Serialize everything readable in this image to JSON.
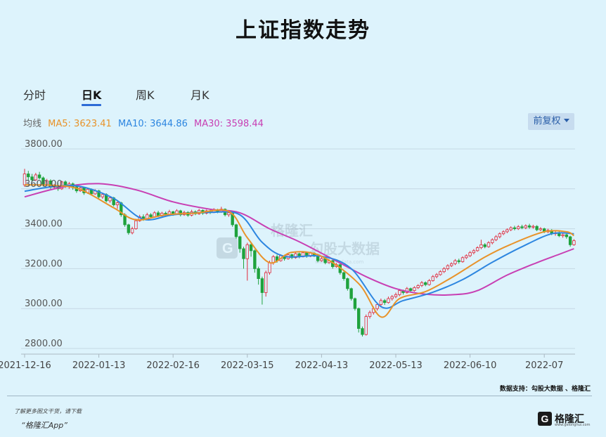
{
  "title": "上证指数走势",
  "tabs": [
    {
      "label": "分时",
      "active": false
    },
    {
      "label": "日K",
      "active": true
    },
    {
      "label": "周K",
      "active": false
    },
    {
      "label": "月K",
      "active": false
    }
  ],
  "ma": {
    "label": "均线",
    "ma5": "MA5: 3623.41",
    "ma10": "MA10: 3644.86",
    "ma30": "MA30: 3598.44",
    "ma5_color": "#e8932a",
    "ma10_color": "#2d86e0",
    "ma30_color": "#c83fb3"
  },
  "adjust_button": "前复权",
  "watermark": {
    "brand": "格隆汇",
    "partner": "勾股大数据",
    "url": "www.gogudata.com"
  },
  "source": "数据支持：勾股大数据 、格隆汇",
  "promo": {
    "line1": "了解更多图文干货，请下载",
    "line2": "“格隆汇App”"
  },
  "logo": {
    "mark": "G",
    "name": "格隆汇",
    "url": "www.gelonghui.com"
  },
  "colors": {
    "up": "#e0273a",
    "down": "#1fa23d",
    "background": "#ddf3fc"
  },
  "chart_data": {
    "type": "candlestick",
    "ylim": [
      2800,
      3800
    ],
    "y_ticks": [
      "3800.00",
      "3600.00",
      "3400.00",
      "3200.00",
      "3000.00",
      "2800.00"
    ],
    "x_ticks": [
      "2021-12-16",
      "2022-01-13",
      "2022-02-16",
      "2022-03-15",
      "2022-04-13",
      "2022-05-13",
      "2022-06-10",
      "2022-07"
    ],
    "x_tick_index": [
      0,
      20,
      40,
      60,
      80,
      100,
      120,
      140
    ],
    "ma5_anchors": [
      [
        0,
        3620
      ],
      [
        8,
        3617
      ],
      [
        15,
        3597
      ],
      [
        24,
        3505
      ],
      [
        30,
        3445
      ],
      [
        38,
        3470
      ],
      [
        46,
        3478
      ],
      [
        55,
        3487
      ],
      [
        60,
        3355
      ],
      [
        66,
        3230
      ],
      [
        72,
        3282
      ],
      [
        80,
        3262
      ],
      [
        90,
        3125
      ],
      [
        96,
        2958
      ],
      [
        101,
        3050
      ],
      [
        108,
        3085
      ],
      [
        115,
        3155
      ],
      [
        124,
        3258
      ],
      [
        131,
        3322
      ],
      [
        140,
        3385
      ],
      [
        146,
        3385
      ],
      [
        148,
        3365
      ]
    ],
    "ma10_anchors": [
      [
        0,
        3588
      ],
      [
        8,
        3612
      ],
      [
        15,
        3612
      ],
      [
        24,
        3552
      ],
      [
        32,
        3448
      ],
      [
        40,
        3470
      ],
      [
        50,
        3482
      ],
      [
        58,
        3470
      ],
      [
        64,
        3332
      ],
      [
        70,
        3262
      ],
      [
        80,
        3262
      ],
      [
        88,
        3200
      ],
      [
        96,
        3010
      ],
      [
        102,
        3040
      ],
      [
        110,
        3082
      ],
      [
        118,
        3145
      ],
      [
        126,
        3232
      ],
      [
        134,
        3310
      ],
      [
        142,
        3375
      ],
      [
        148,
        3375
      ]
    ],
    "ma30_anchors": [
      [
        0,
        3560
      ],
      [
        10,
        3608
      ],
      [
        20,
        3626
      ],
      [
        30,
        3595
      ],
      [
        40,
        3535
      ],
      [
        50,
        3498
      ],
      [
        58,
        3480
      ],
      [
        66,
        3400
      ],
      [
        74,
        3335
      ],
      [
        84,
        3238
      ],
      [
        92,
        3160
      ],
      [
        100,
        3100
      ],
      [
        108,
        3072
      ],
      [
        116,
        3070
      ],
      [
        122,
        3090
      ],
      [
        130,
        3168
      ],
      [
        138,
        3230
      ],
      [
        144,
        3272
      ],
      [
        148,
        3300
      ]
    ],
    "candles": [
      [
        0,
        3620,
        3675,
        3700,
        3610
      ],
      [
        1,
        3675,
        3660,
        3690,
        3640
      ],
      [
        2,
        3660,
        3645,
        3675,
        3635
      ],
      [
        3,
        3645,
        3670,
        3680,
        3640
      ],
      [
        4,
        3670,
        3655,
        3685,
        3648
      ],
      [
        5,
        3655,
        3620,
        3662,
        3612
      ],
      [
        6,
        3620,
        3640,
        3650,
        3615
      ],
      [
        7,
        3640,
        3608,
        3648,
        3600
      ],
      [
        8,
        3608,
        3615,
        3625,
        3598
      ],
      [
        9,
        3615,
        3600,
        3630,
        3590
      ],
      [
        10,
        3600,
        3635,
        3640,
        3595
      ],
      [
        11,
        3635,
        3612,
        3642,
        3605
      ],
      [
        12,
        3612,
        3625,
        3635,
        3600
      ],
      [
        13,
        3625,
        3610,
        3632,
        3595
      ],
      [
        14,
        3610,
        3590,
        3618,
        3580
      ],
      [
        15,
        3590,
        3605,
        3615,
        3585
      ],
      [
        16,
        3605,
        3580,
        3610,
        3570
      ],
      [
        17,
        3580,
        3598,
        3606,
        3575
      ],
      [
        18,
        3598,
        3575,
        3602,
        3568
      ],
      [
        19,
        3575,
        3590,
        3598,
        3570
      ],
      [
        20,
        3590,
        3560,
        3595,
        3552
      ],
      [
        21,
        3560,
        3572,
        3580,
        3550
      ],
      [
        22,
        3572,
        3540,
        3578,
        3532
      ],
      [
        23,
        3540,
        3555,
        3562,
        3530
      ],
      [
        24,
        3555,
        3520,
        3560,
        3512
      ],
      [
        25,
        3520,
        3530,
        3540,
        3500
      ],
      [
        26,
        3530,
        3470,
        3535,
        3460
      ],
      [
        27,
        3470,
        3420,
        3478,
        3410
      ],
      [
        28,
        3420,
        3380,
        3425,
        3370
      ],
      [
        29,
        3380,
        3400,
        3410,
        3372
      ],
      [
        30,
        3400,
        3440,
        3450,
        3395
      ],
      [
        31,
        3440,
        3460,
        3470,
        3435
      ],
      [
        32,
        3460,
        3450,
        3472,
        3440
      ],
      [
        33,
        3450,
        3470,
        3480,
        3445
      ],
      [
        34,
        3470,
        3460,
        3478,
        3452
      ],
      [
        35,
        3460,
        3480,
        3488,
        3455
      ],
      [
        36,
        3480,
        3465,
        3490,
        3458
      ],
      [
        37,
        3465,
        3478,
        3485,
        3460
      ],
      [
        38,
        3478,
        3470,
        3486,
        3462
      ],
      [
        39,
        3470,
        3485,
        3495,
        3465
      ],
      [
        40,
        3485,
        3475,
        3490,
        3465
      ],
      [
        41,
        3475,
        3490,
        3498,
        3470
      ],
      [
        42,
        3490,
        3470,
        3495,
        3462
      ],
      [
        43,
        3470,
        3482,
        3490,
        3465
      ],
      [
        44,
        3482,
        3468,
        3488,
        3460
      ],
      [
        45,
        3468,
        3485,
        3495,
        3462
      ],
      [
        46,
        3485,
        3475,
        3492,
        3468
      ],
      [
        47,
        3475,
        3492,
        3500,
        3470
      ],
      [
        48,
        3492,
        3478,
        3497,
        3470
      ],
      [
        49,
        3478,
        3490,
        3496,
        3472
      ],
      [
        50,
        3490,
        3482,
        3496,
        3474
      ],
      [
        51,
        3482,
        3495,
        3503,
        3478
      ],
      [
        52,
        3495,
        3485,
        3500,
        3478
      ],
      [
        53,
        3485,
        3498,
        3510,
        3480
      ],
      [
        54,
        3498,
        3470,
        3502,
        3462
      ],
      [
        55,
        3470,
        3480,
        3488,
        3460
      ],
      [
        56,
        3480,
        3420,
        3485,
        3410
      ],
      [
        57,
        3420,
        3360,
        3425,
        3350
      ],
      [
        58,
        3360,
        3300,
        3365,
        3280
      ],
      [
        59,
        3300,
        3250,
        3310,
        3200
      ],
      [
        60,
        3250,
        3320,
        3330,
        3140
      ],
      [
        61,
        3320,
        3290,
        3330,
        3260
      ],
      [
        62,
        3290,
        3200,
        3296,
        3180
      ],
      [
        63,
        3200,
        3150,
        3210,
        3120
      ],
      [
        64,
        3150,
        3080,
        3160,
        3020
      ],
      [
        65,
        3080,
        3180,
        3190,
        3060
      ],
      [
        66,
        3180,
        3230,
        3240,
        3170
      ],
      [
        67,
        3230,
        3260,
        3268,
        3220
      ],
      [
        68,
        3260,
        3240,
        3270,
        3230
      ],
      [
        69,
        3240,
        3265,
        3272,
        3235
      ],
      [
        70,
        3265,
        3250,
        3270,
        3240
      ],
      [
        71,
        3250,
        3270,
        3278,
        3245
      ],
      [
        72,
        3270,
        3255,
        3275,
        3248
      ],
      [
        73,
        3255,
        3275,
        3282,
        3250
      ],
      [
        74,
        3275,
        3260,
        3280,
        3252
      ],
      [
        75,
        3260,
        3280,
        3288,
        3256
      ],
      [
        76,
        3280,
        3262,
        3286,
        3255
      ],
      [
        77,
        3262,
        3278,
        3285,
        3258
      ],
      [
        78,
        3278,
        3265,
        3282,
        3258
      ],
      [
        79,
        3265,
        3240,
        3270,
        3232
      ],
      [
        80,
        3240,
        3250,
        3258,
        3235
      ],
      [
        81,
        3250,
        3230,
        3256,
        3222
      ],
      [
        82,
        3230,
        3240,
        3248,
        3225
      ],
      [
        83,
        3240,
        3210,
        3245,
        3200
      ],
      [
        84,
        3210,
        3220,
        3228,
        3205
      ],
      [
        85,
        3220,
        3180,
        3225,
        3170
      ],
      [
        86,
        3180,
        3150,
        3185,
        3140
      ],
      [
        87,
        3150,
        3100,
        3155,
        3090
      ],
      [
        88,
        3100,
        3050,
        3105,
        3040
      ],
      [
        89,
        3050,
        3000,
        3055,
        2990
      ],
      [
        90,
        3000,
        2900,
        3005,
        2880
      ],
      [
        91,
        2900,
        2870,
        2910,
        2860
      ],
      [
        92,
        2870,
        2960,
        2970,
        2865
      ],
      [
        93,
        2960,
        2980,
        2990,
        2950
      ],
      [
        94,
        2980,
        3000,
        3010,
        2970
      ],
      [
        95,
        3000,
        3020,
        3030,
        2990
      ],
      [
        96,
        3020,
        3040,
        3050,
        3010
      ],
      [
        97,
        3040,
        3030,
        3048,
        3018
      ],
      [
        98,
        3030,
        3050,
        3060,
        3025
      ],
      [
        99,
        3050,
        3060,
        3068,
        3040
      ],
      [
        100,
        3060,
        3070,
        3080,
        3052
      ],
      [
        101,
        3070,
        3090,
        3098,
        3062
      ],
      [
        102,
        3090,
        3080,
        3095,
        3070
      ],
      [
        103,
        3080,
        3100,
        3108,
        3075
      ],
      [
        104,
        3100,
        3090,
        3105,
        3082
      ],
      [
        105,
        3090,
        3105,
        3112,
        3085
      ],
      [
        106,
        3105,
        3115,
        3122,
        3098
      ],
      [
        107,
        3115,
        3130,
        3138,
        3108
      ],
      [
        108,
        3130,
        3120,
        3136,
        3112
      ],
      [
        109,
        3120,
        3140,
        3148,
        3115
      ],
      [
        110,
        3140,
        3160,
        3168,
        3135
      ],
      [
        111,
        3160,
        3170,
        3178,
        3152
      ],
      [
        112,
        3170,
        3185,
        3192,
        3165
      ],
      [
        113,
        3185,
        3200,
        3208,
        3178
      ],
      [
        114,
        3200,
        3215,
        3222,
        3192
      ],
      [
        115,
        3215,
        3225,
        3232,
        3208
      ],
      [
        116,
        3225,
        3240,
        3248,
        3218
      ],
      [
        117,
        3240,
        3235,
        3250,
        3225
      ],
      [
        118,
        3235,
        3255,
        3262,
        3230
      ],
      [
        119,
        3255,
        3265,
        3272,
        3248
      ],
      [
        120,
        3265,
        3280,
        3288,
        3258
      ],
      [
        121,
        3280,
        3290,
        3298,
        3272
      ],
      [
        122,
        3290,
        3305,
        3312,
        3285
      ],
      [
        123,
        3305,
        3320,
        3345,
        3298
      ],
      [
        124,
        3320,
        3310,
        3328,
        3302
      ],
      [
        125,
        3310,
        3330,
        3338,
        3305
      ],
      [
        126,
        3330,
        3345,
        3352,
        3322
      ],
      [
        127,
        3345,
        3360,
        3368,
        3338
      ],
      [
        128,
        3360,
        3375,
        3382,
        3352
      ],
      [
        129,
        3375,
        3385,
        3392,
        3368
      ],
      [
        130,
        3385,
        3395,
        3402,
        3378
      ],
      [
        131,
        3395,
        3405,
        3412,
        3388
      ],
      [
        132,
        3405,
        3400,
        3415,
        3392
      ],
      [
        133,
        3400,
        3410,
        3418,
        3394
      ],
      [
        134,
        3410,
        3405,
        3420,
        3398
      ],
      [
        135,
        3405,
        3415,
        3422,
        3398
      ],
      [
        136,
        3415,
        3408,
        3425,
        3400
      ],
      [
        137,
        3408,
        3412,
        3420,
        3400
      ],
      [
        138,
        3412,
        3395,
        3418,
        3388
      ],
      [
        139,
        3395,
        3400,
        3408,
        3388
      ],
      [
        140,
        3400,
        3385,
        3405,
        3378
      ],
      [
        141,
        3385,
        3392,
        3400,
        3378
      ],
      [
        142,
        3392,
        3375,
        3398,
        3368
      ],
      [
        143,
        3375,
        3380,
        3388,
        3365
      ],
      [
        144,
        3380,
        3365,
        3386,
        3358
      ],
      [
        145,
        3365,
        3370,
        3378,
        3355
      ],
      [
        146,
        3370,
        3360,
        3375,
        3350
      ],
      [
        147,
        3360,
        3320,
        3365,
        3310
      ],
      [
        148,
        3320,
        3340,
        3348,
        3315
      ]
    ]
  }
}
